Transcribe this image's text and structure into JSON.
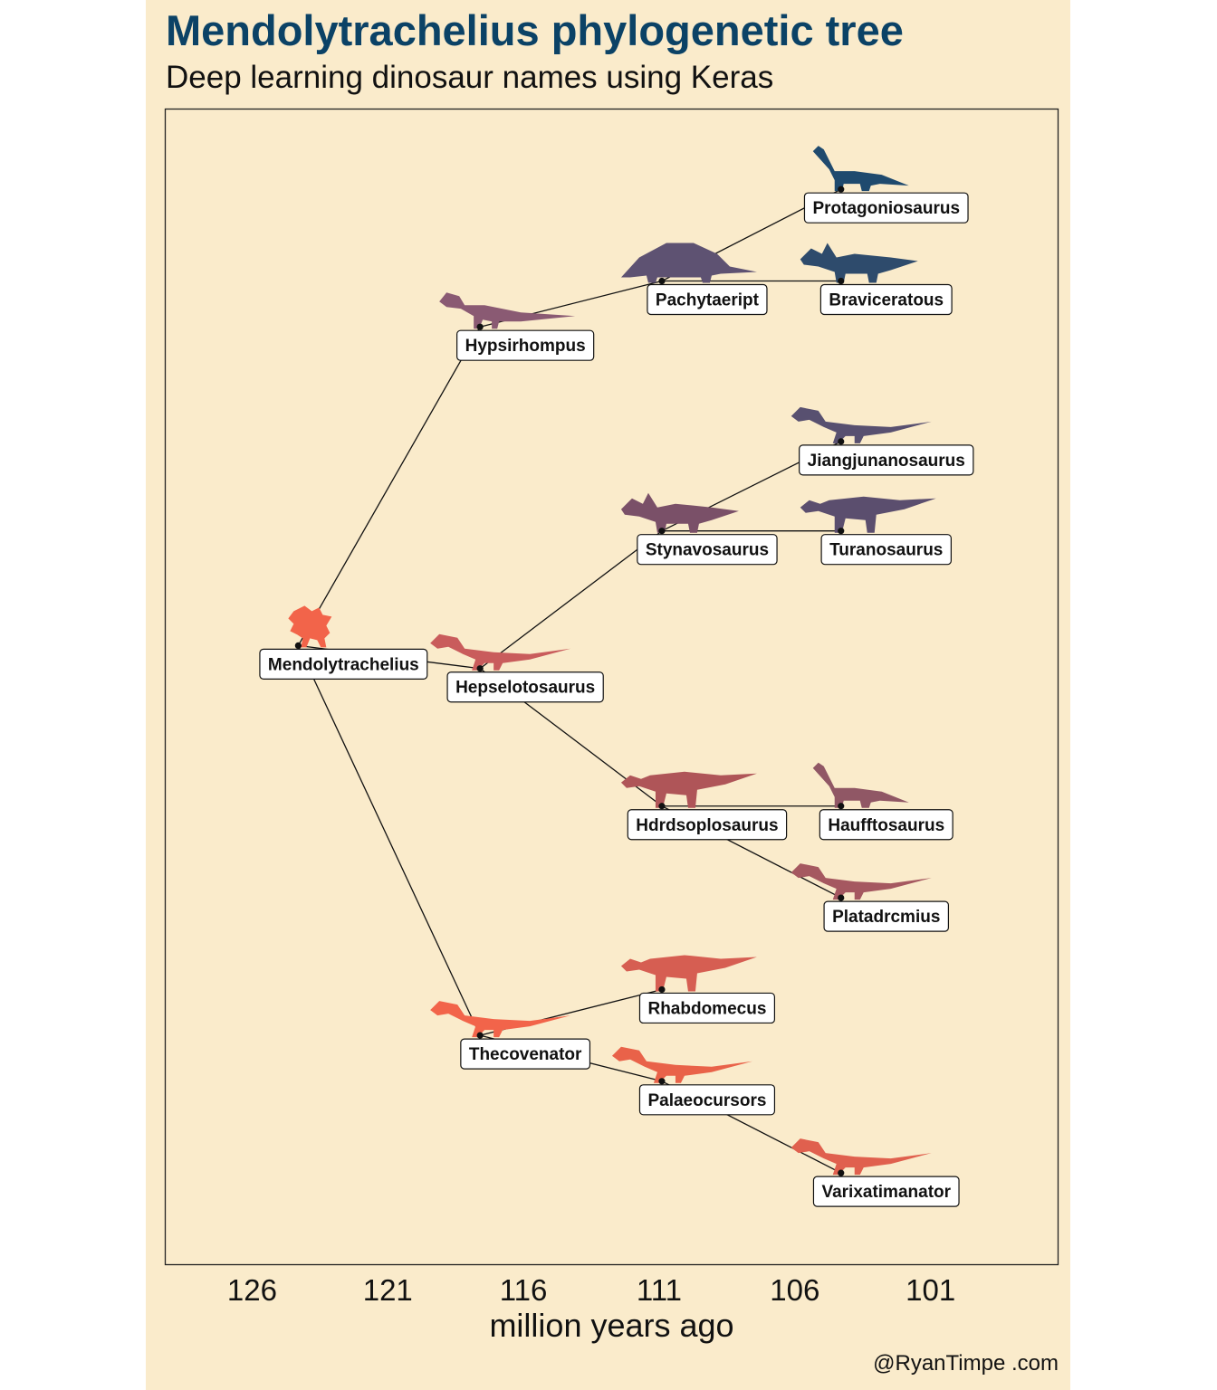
{
  "title": "Mendolytrachelius phylogenetic tree",
  "subtitle": "Deep learning dinosaur names using Keras",
  "caption": "@RyanTimpe .com",
  "chart_data": {
    "type": "tree",
    "xlabel": "million years ago",
    "x_ticks": [
      126,
      121,
      116,
      111,
      106,
      101
    ],
    "xlim": [
      129.2,
      96.3
    ],
    "grid": false,
    "colors": {
      "root": "#F2644A",
      "leaf_deep": "#1F4A6E"
    },
    "nodes": [
      {
        "name": "Mendolytrachelius",
        "x": 124.3,
        "y": 0.5,
        "parent": null,
        "color": "#F2644A",
        "icon": "stegosaur-silhouette"
      },
      {
        "name": "Hypsirhompus",
        "x": 117.6,
        "y": 7.45,
        "parent": "Mendolytrachelius",
        "color": "#8A5A73",
        "icon": "ornithopod-silhouette"
      },
      {
        "name": "Hepselotosaurus",
        "x": 117.6,
        "y": 0.0,
        "parent": "Mendolytrachelius",
        "color": "#C95C5C",
        "icon": "theropod-silhouette"
      },
      {
        "name": "Thecovenator",
        "x": 117.6,
        "y": -8.0,
        "parent": "Mendolytrachelius",
        "color": "#F2644A",
        "icon": "theropod-silhouette"
      },
      {
        "name": "Pachytaeript",
        "x": 110.9,
        "y": 8.45,
        "parent": "Hypsirhompus",
        "color": "#5E5272",
        "icon": "ankylosaur-silhouette"
      },
      {
        "name": "Protagoniosaurus",
        "x": 104.3,
        "y": 10.45,
        "parent": "Pachytaeript",
        "color": "#1F4A6E",
        "icon": "sauropod-silhouette"
      },
      {
        "name": "Braviceratous",
        "x": 104.3,
        "y": 8.45,
        "parent": "Pachytaeript",
        "color": "#2E4B6C",
        "icon": "ceratopsian-silhouette"
      },
      {
        "name": "Stynavosaurus",
        "x": 110.9,
        "y": 3.0,
        "parent": "Hepselotosaurus",
        "color": "#7A5068",
        "icon": "ceratopsian-silhouette"
      },
      {
        "name": "Jiangjunanosaurus",
        "x": 104.3,
        "y": 4.95,
        "parent": "Stynavosaurus",
        "color": "#585070",
        "icon": "theropod-silhouette"
      },
      {
        "name": "Turanosaurus",
        "x": 104.3,
        "y": 3.0,
        "parent": "Stynavosaurus",
        "color": "#5B4E6E",
        "icon": "hadrosaur-silhouette"
      },
      {
        "name": "Hdrdsoplosaurus",
        "x": 110.9,
        "y": -3.0,
        "parent": "Hepselotosaurus",
        "color": "#AF5558",
        "icon": "hadrosaur-silhouette"
      },
      {
        "name": "Haufftosaurus",
        "x": 104.3,
        "y": -3.0,
        "parent": "Hdrdsoplosaurus",
        "color": "#905765",
        "icon": "sauropod-silhouette"
      },
      {
        "name": "Platadrcmius",
        "x": 104.3,
        "y": -5.0,
        "parent": "Hdrdsoplosaurus",
        "color": "#A55860",
        "icon": "theropod-silhouette"
      },
      {
        "name": "Rhabdomecus",
        "x": 110.9,
        "y": -7.0,
        "parent": "Thecovenator",
        "color": "#D65E52",
        "icon": "hadrosaur-silhouette"
      },
      {
        "name": "Palaeocursors",
        "x": 110.9,
        "y": -9.0,
        "parent": "Thecovenator",
        "color": "#E96249",
        "icon": "theropod-silhouette"
      },
      {
        "name": "Varixatimanator",
        "x": 104.3,
        "y": -11.0,
        "parent": "Palaeocursors",
        "color": "#E0604E",
        "icon": "theropod-silhouette"
      }
    ]
  }
}
